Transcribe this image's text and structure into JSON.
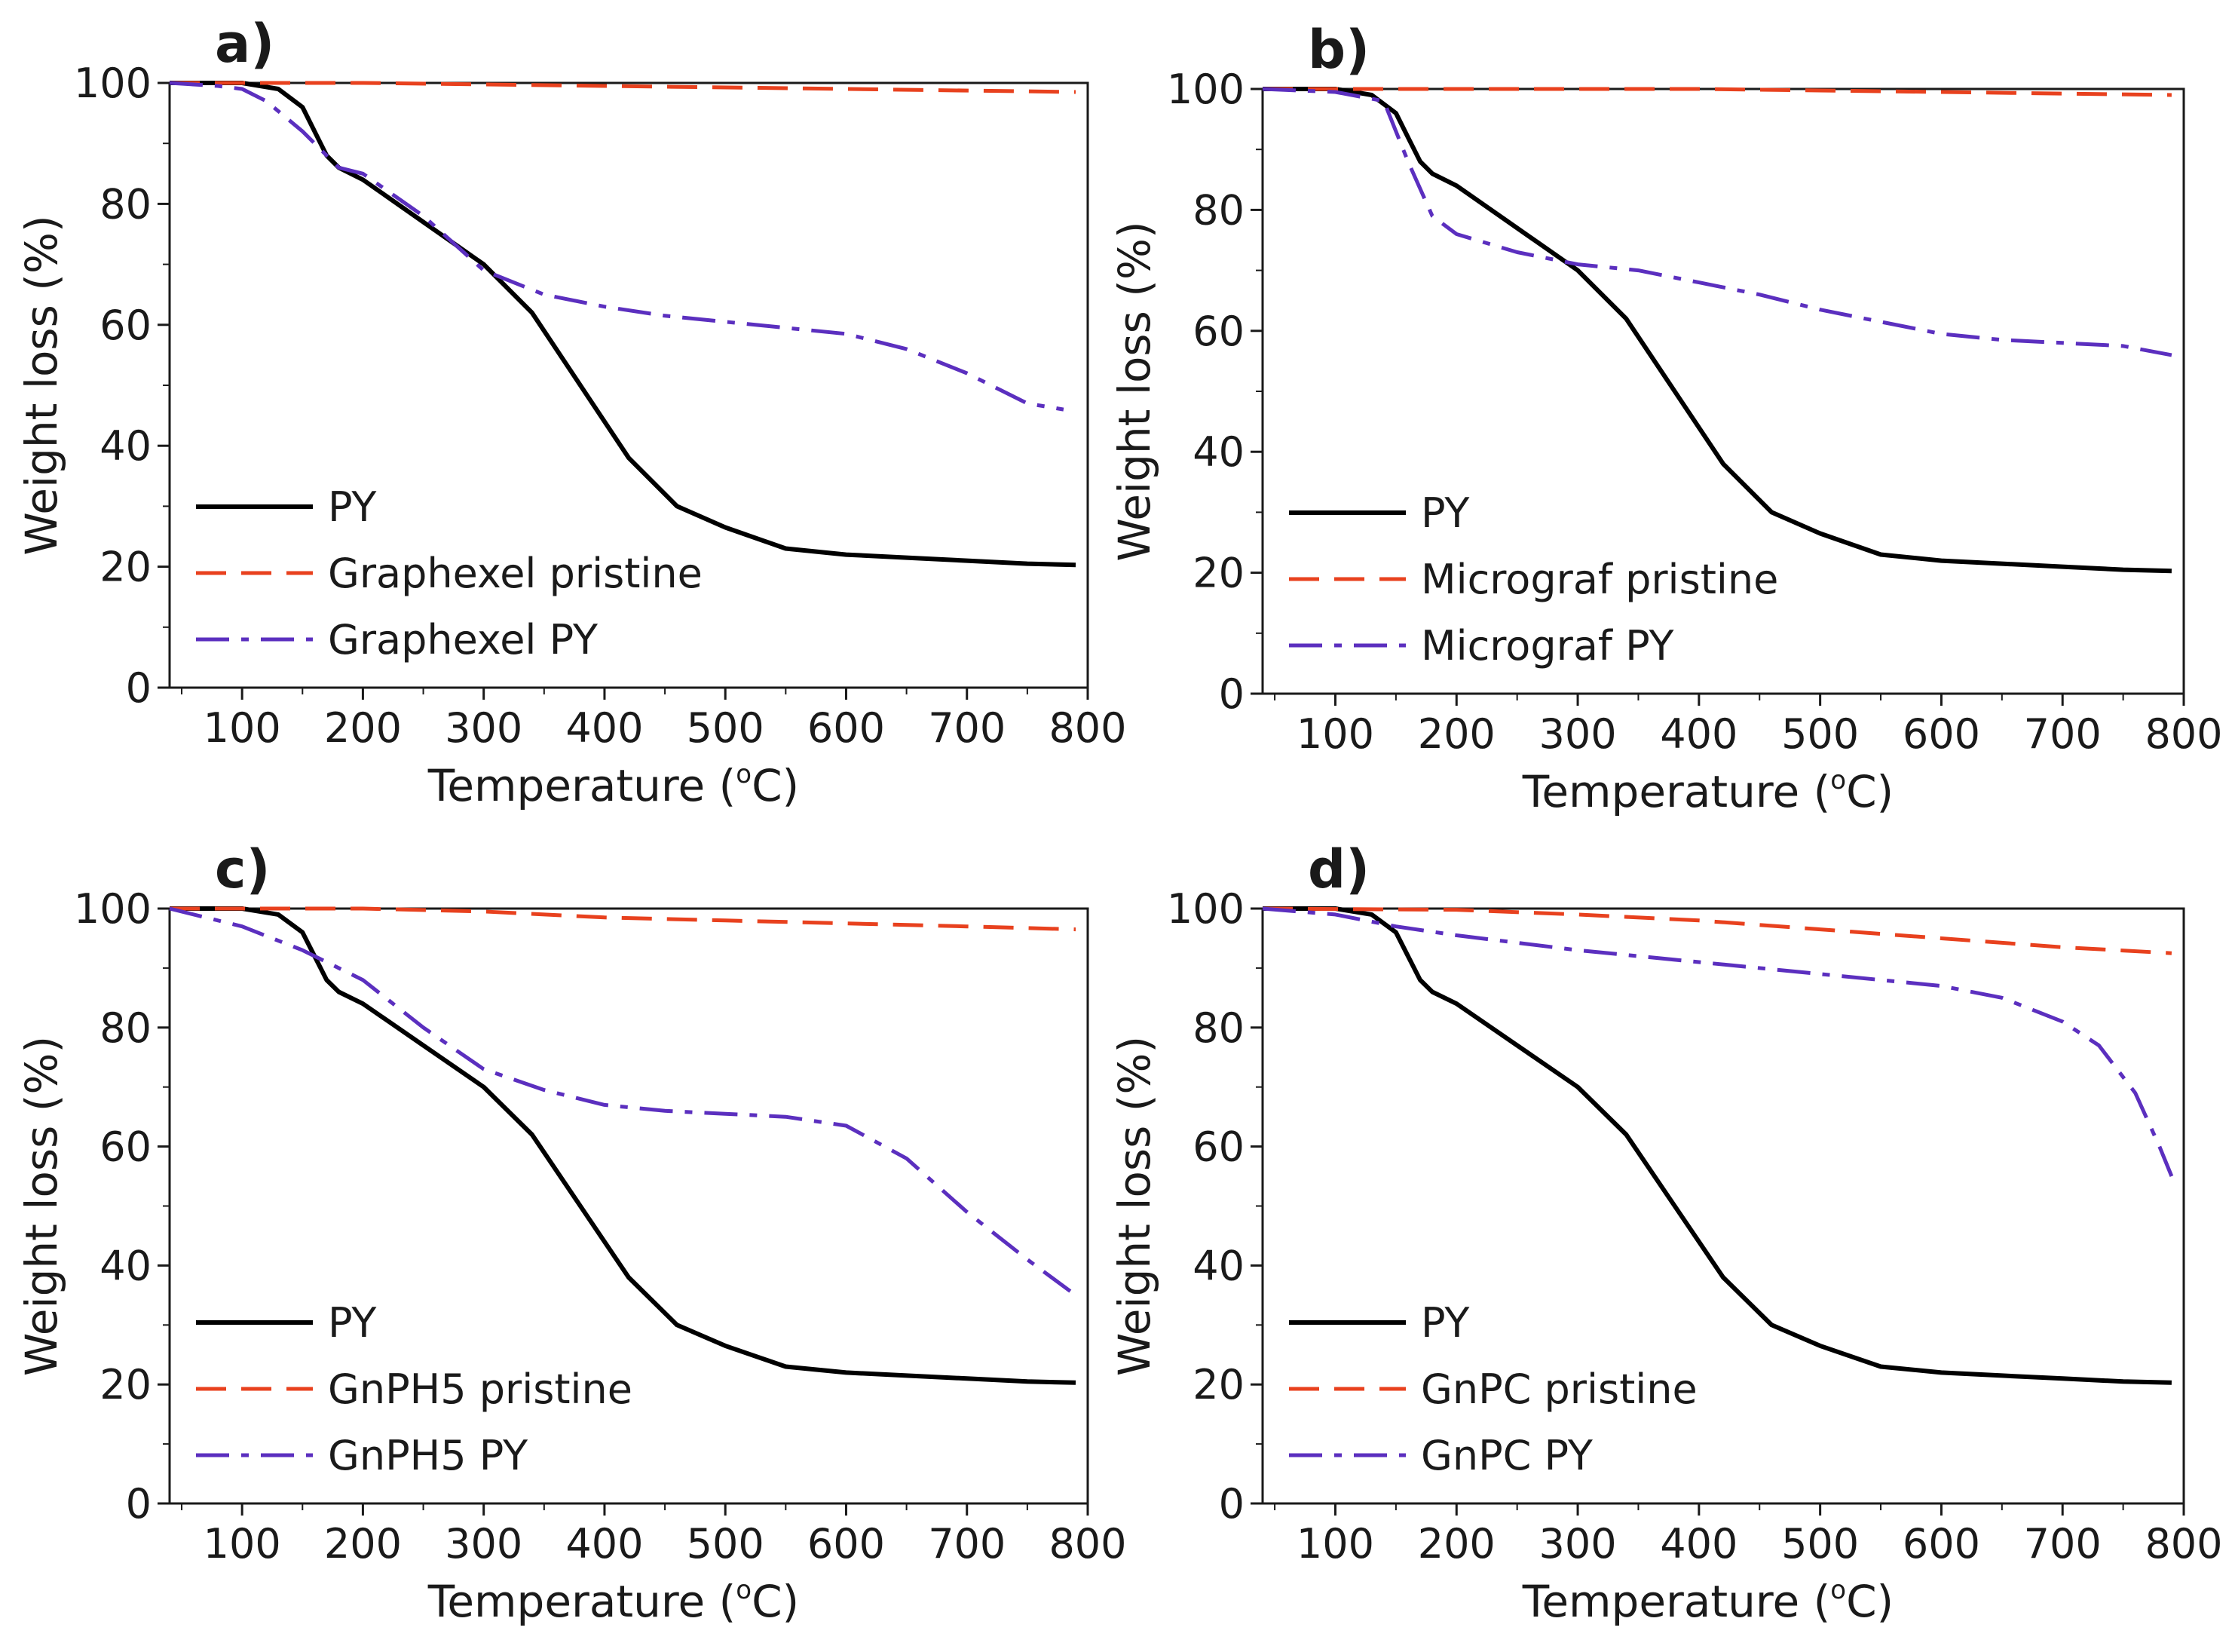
{
  "chart_data": [
    {
      "type": "line",
      "panel_label": "a)",
      "xlabel_prefix": "Temperature (",
      "xlabel_degree": "o",
      "xlabel_suffix": "C)",
      "ylabel": "Weight loss (%)",
      "xlim": [
        40,
        800
      ],
      "ylim": [
        0,
        100
      ],
      "xticks": [
        "100",
        "200",
        "300",
        "400",
        "500",
        "600",
        "700",
        "800"
      ],
      "yticks": [
        "0",
        "20",
        "40",
        "60",
        "80",
        "100"
      ],
      "legend_position": "bottom-left",
      "series": [
        {
          "name": "PY",
          "style": "solid",
          "color": "#000000",
          "x": [
            40,
            100,
            130,
            150,
            160,
            170,
            180,
            200,
            250,
            300,
            340,
            380,
            420,
            460,
            500,
            550,
            600,
            650,
            700,
            750,
            790
          ],
          "y": [
            100,
            100,
            99,
            96,
            92,
            88,
            86,
            84,
            77,
            70,
            62,
            50,
            38,
            30,
            26.5,
            23,
            22,
            21.5,
            21,
            20.5,
            20.3
          ]
        },
        {
          "name": "Graphexel pristine",
          "style": "dashed",
          "color": "#e8411e",
          "x": [
            40,
            200,
            400,
            600,
            790
          ],
          "y": [
            100,
            100,
            99.5,
            99,
            98.5
          ]
        },
        {
          "name": "Graphexel PY",
          "style": "dashdot",
          "color": "#5b2fbf",
          "x": [
            40,
            80,
            100,
            120,
            150,
            180,
            200,
            250,
            300,
            350,
            400,
            450,
            500,
            550,
            600,
            650,
            700,
            750,
            780
          ],
          "y": [
            100,
            99.5,
            99,
            97,
            92,
            86,
            85,
            78,
            69,
            65,
            63,
            61.5,
            60.5,
            59.5,
            58.5,
            56,
            52,
            47,
            46
          ]
        }
      ]
    },
    {
      "type": "line",
      "panel_label": "b)",
      "xlabel_prefix": "Temperature (",
      "xlabel_degree": "o",
      "xlabel_suffix": "C)",
      "ylabel": "Weight loss (%)",
      "xlim": [
        40,
        800
      ],
      "ylim": [
        0,
        100
      ],
      "xticks": [
        "100",
        "200",
        "300",
        "400",
        "500",
        "600",
        "700",
        "800"
      ],
      "yticks": [
        "0",
        "20",
        "40",
        "60",
        "80",
        "100"
      ],
      "legend_position": "bottom-left",
      "series": [
        {
          "name": "PY",
          "style": "solid",
          "color": "#000000",
          "x": [
            40,
            100,
            130,
            150,
            160,
            170,
            180,
            200,
            250,
            300,
            340,
            380,
            420,
            460,
            500,
            550,
            600,
            650,
            700,
            750,
            790
          ],
          "y": [
            100,
            100,
            99,
            96,
            92,
            88,
            86,
            84,
            77,
            70,
            62,
            50,
            38,
            30,
            26.5,
            23,
            22,
            21.5,
            21,
            20.5,
            20.3
          ]
        },
        {
          "name": "Micrograf pristine",
          "style": "dashed",
          "color": "#e8411e",
          "x": [
            40,
            200,
            400,
            600,
            790
          ],
          "y": [
            100,
            100,
            100,
            99.5,
            99
          ]
        },
        {
          "name": "Micrograf PY",
          "style": "dashdot",
          "color": "#5b2fbf",
          "x": [
            40,
            100,
            140,
            160,
            180,
            200,
            250,
            300,
            350,
            400,
            450,
            500,
            550,
            600,
            650,
            700,
            750,
            790
          ],
          "y": [
            100,
            99.5,
            98,
            88,
            79,
            76,
            73,
            71,
            70,
            68,
            66,
            63.5,
            61.5,
            59.5,
            58.5,
            58,
            57.5,
            56
          ]
        }
      ]
    },
    {
      "type": "line",
      "panel_label": "c)",
      "xlabel_prefix": "Temperature (",
      "xlabel_degree": "o",
      "xlabel_suffix": "C)",
      "ylabel": "Weight loss (%)",
      "xlim": [
        40,
        800
      ],
      "ylim": [
        0,
        100
      ],
      "xticks": [
        "100",
        "200",
        "300",
        "400",
        "500",
        "600",
        "700",
        "800"
      ],
      "yticks": [
        "0",
        "20",
        "40",
        "60",
        "80",
        "100"
      ],
      "legend_position": "bottom-left",
      "series": [
        {
          "name": "PY",
          "style": "solid",
          "color": "#000000",
          "x": [
            40,
            100,
            130,
            150,
            160,
            170,
            180,
            200,
            250,
            300,
            340,
            380,
            420,
            460,
            500,
            550,
            600,
            650,
            700,
            750,
            790
          ],
          "y": [
            100,
            100,
            99,
            96,
            92,
            88,
            86,
            84,
            77,
            70,
            62,
            50,
            38,
            30,
            26.5,
            23,
            22,
            21.5,
            21,
            20.5,
            20.3
          ]
        },
        {
          "name": "GnPH5 pristine",
          "style": "dashed",
          "color": "#e8411e",
          "x": [
            40,
            200,
            300,
            400,
            500,
            600,
            700,
            790
          ],
          "y": [
            100,
            100,
            99.5,
            98.5,
            98,
            97.5,
            97,
            96.5
          ]
        },
        {
          "name": "GnPH5 PY",
          "style": "dashdot",
          "color": "#5b2fbf",
          "x": [
            40,
            100,
            150,
            200,
            250,
            300,
            350,
            400,
            450,
            500,
            550,
            600,
            650,
            700,
            750,
            790
          ],
          "y": [
            100,
            97,
            93,
            88,
            80,
            73,
            69.5,
            67,
            66,
            65.5,
            65,
            63.5,
            58,
            49,
            41,
            35
          ]
        }
      ]
    },
    {
      "type": "line",
      "panel_label": "d)",
      "xlabel_prefix": "Temperature (",
      "xlabel_degree": "o",
      "xlabel_suffix": "C)",
      "ylabel": "Weight loss (%)",
      "xlim": [
        40,
        800
      ],
      "ylim": [
        0,
        100
      ],
      "xticks": [
        "100",
        "200",
        "300",
        "400",
        "500",
        "600",
        "700",
        "800"
      ],
      "yticks": [
        "0",
        "20",
        "40",
        "60",
        "80",
        "100"
      ],
      "legend_position": "bottom-left",
      "series": [
        {
          "name": "PY",
          "style": "solid",
          "color": "#000000",
          "x": [
            40,
            100,
            130,
            150,
            160,
            170,
            180,
            200,
            250,
            300,
            340,
            380,
            420,
            460,
            500,
            550,
            600,
            650,
            700,
            750,
            790
          ],
          "y": [
            100,
            100,
            99,
            96,
            92,
            88,
            86,
            84,
            77,
            70,
            62,
            50,
            38,
            30,
            26.5,
            23,
            22,
            21.5,
            21,
            20.5,
            20.3
          ]
        },
        {
          "name": "GnPC pristine",
          "style": "dashed",
          "color": "#e8411e",
          "x": [
            40,
            200,
            300,
            400,
            500,
            600,
            700,
            790
          ],
          "y": [
            100,
            99.8,
            99,
            98,
            96.5,
            95,
            93.5,
            92.5
          ]
        },
        {
          "name": "GnPC PY",
          "style": "dashdot",
          "color": "#5b2fbf",
          "x": [
            40,
            100,
            150,
            200,
            300,
            400,
            500,
            600,
            650,
            700,
            730,
            760,
            780,
            790
          ],
          "y": [
            100,
            99,
            97,
            95.5,
            93,
            91,
            89,
            87,
            85,
            81,
            77,
            69,
            60,
            55
          ]
        }
      ]
    }
  ]
}
